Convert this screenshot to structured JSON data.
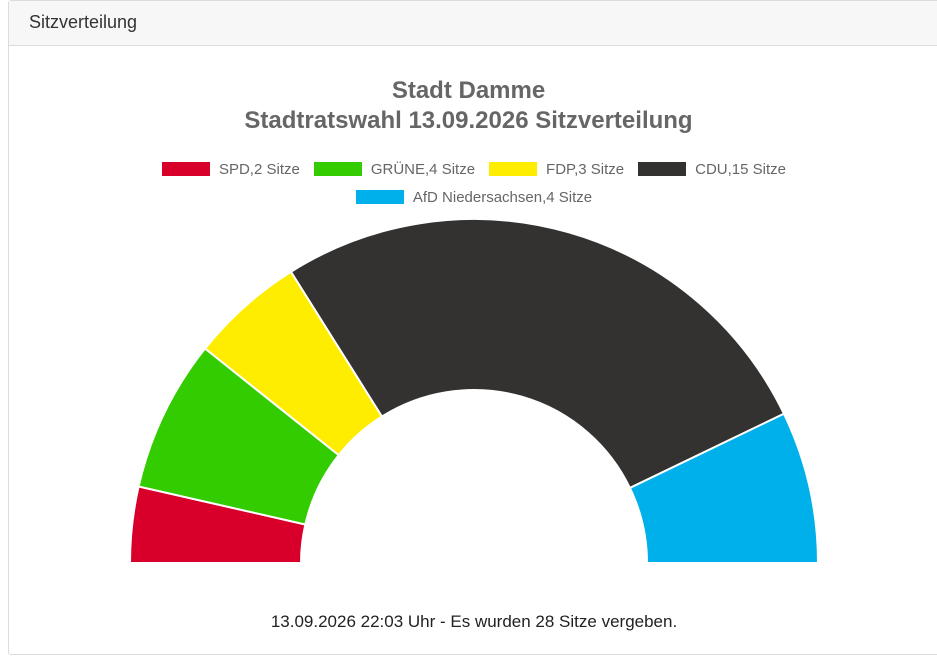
{
  "panel": {
    "header_title": "Sitzverteilung"
  },
  "chart_data": {
    "type": "pie",
    "variant": "half-doughnut",
    "title_lines": [
      "Stadt Damme",
      "Stadtratswahl 13.09.2026 Sitzverteilung"
    ],
    "legend_placement": "top",
    "unit": "Sitze",
    "total_seats": 28,
    "slices": [
      {
        "label": "SPD,2 Sitze",
        "party": "SPD",
        "value": 2,
        "color": "#d8002a"
      },
      {
        "label": "GRÜNE,4 Sitze",
        "party": "GRÜNE",
        "value": 4,
        "color": "#33cc00"
      },
      {
        "label": "FDP,3 Sitze",
        "party": "FDP",
        "value": 3,
        "color": "#ffed00"
      },
      {
        "label": "CDU,15 Sitze",
        "party": "CDU",
        "value": 15,
        "color": "#333231"
      },
      {
        "label": "AfD Niedersachsen,4 Sitze",
        "party": "AfD Niedersachsen",
        "value": 4,
        "color": "#00b0eb"
      }
    ]
  },
  "footer": {
    "text": "13.09.2026 22:03 Uhr - Es wurden 28 Sitze vergeben."
  }
}
